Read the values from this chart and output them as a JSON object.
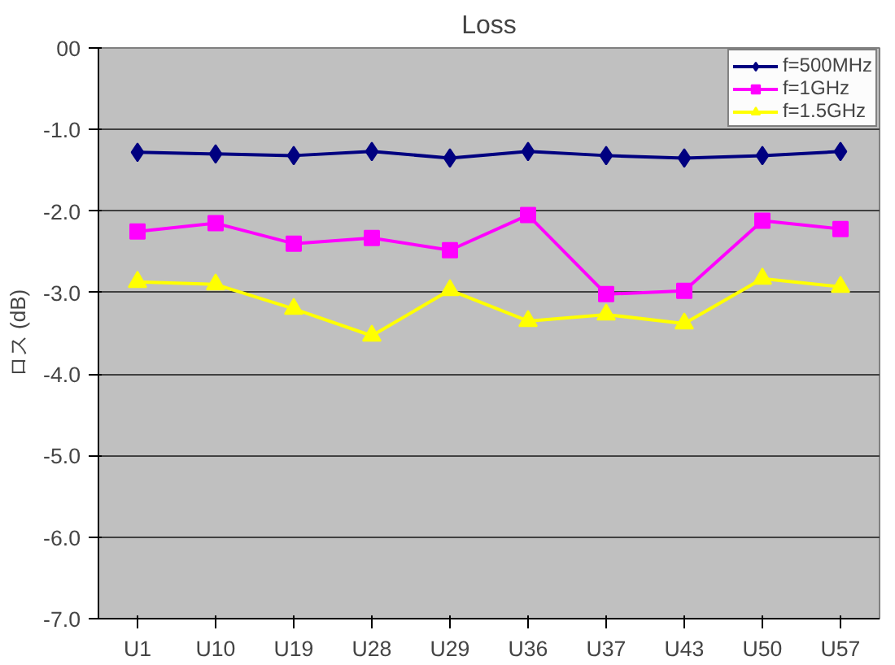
{
  "chart_data": {
    "type": "line",
    "title": "Loss",
    "ylabel": "ロス (dB)",
    "categories": [
      "U1",
      "U10",
      "U19",
      "U28",
      "U29",
      "U36",
      "U37",
      "U43",
      "U50",
      "U57"
    ],
    "series": [
      {
        "name": "f=500MHz",
        "color": "#000080",
        "marker": "diamond",
        "values": [
          -1.28,
          -1.3,
          -1.32,
          -1.27,
          -1.35,
          -1.27,
          -1.32,
          -1.35,
          -1.32,
          -1.27
        ]
      },
      {
        "name": "f=1GHz",
        "color": "#ff00ff",
        "marker": "square",
        "values": [
          -2.25,
          -2.15,
          -2.4,
          -2.33,
          -2.48,
          -2.05,
          -3.02,
          -2.98,
          -2.12,
          -2.22
        ]
      },
      {
        "name": "f=1.5GHz",
        "color": "#ffff00",
        "marker": "triangle",
        "values": [
          -2.87,
          -2.9,
          -3.2,
          -3.53,
          -2.97,
          -3.35,
          -3.27,
          -3.38,
          -2.83,
          -2.93
        ]
      }
    ],
    "ylim": [
      -7,
      0
    ],
    "yticks": [
      {
        "value": 0,
        "label": "00"
      },
      {
        "value": -1,
        "label": "-1.0"
      },
      {
        "value": -2,
        "label": "-2.0"
      },
      {
        "value": -3,
        "label": "-3.0"
      },
      {
        "value": -4,
        "label": "-4.0"
      },
      {
        "value": -5,
        "label": "-5.0"
      },
      {
        "value": -6,
        "label": "-6.0"
      },
      {
        "value": -7,
        "label": "-7.0"
      }
    ],
    "grid": "y",
    "legend": "top right"
  }
}
